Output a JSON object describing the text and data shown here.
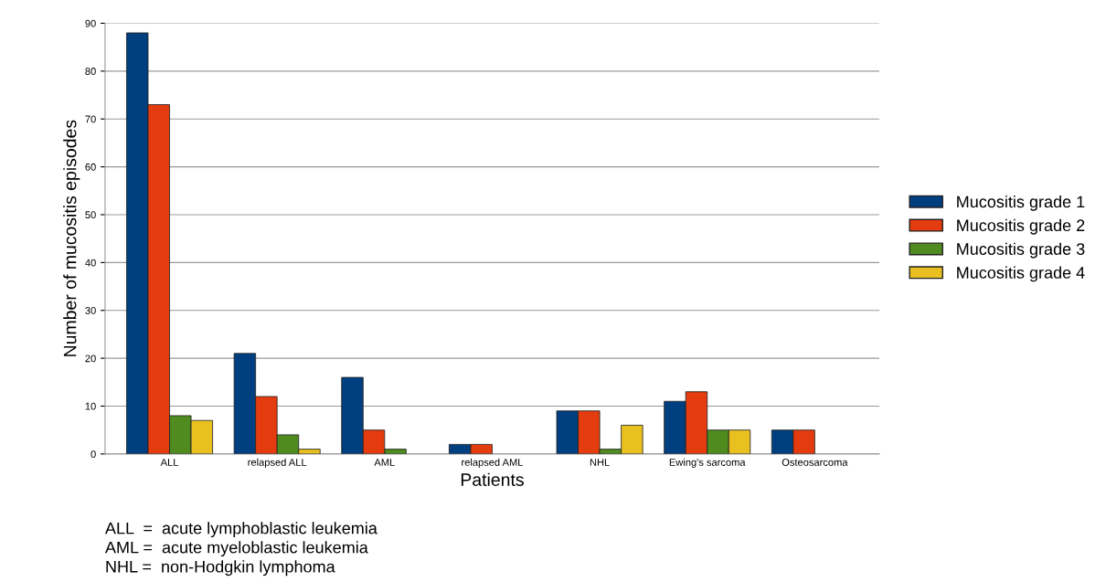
{
  "chart_data": {
    "type": "bar",
    "xlabel": "Patients",
    "ylabel": "Number of mucositis episodes",
    "categories": [
      "ALL",
      "relapsed ALL",
      "AML",
      "relapsed AML",
      "NHL",
      "Ewing's sarcoma",
      "Osteosarcoma"
    ],
    "series": [
      {
        "name": "Mucositis grade 1",
        "color": "#003f7f",
        "values": [
          88,
          21,
          16,
          2,
          9,
          11,
          5
        ]
      },
      {
        "name": "Mucositis grade 2",
        "color": "#e43c0e",
        "values": [
          73,
          12,
          5,
          2,
          9,
          13,
          5
        ]
      },
      {
        "name": "Mucositis grade 3",
        "color": "#4f8b1f",
        "values": [
          8,
          4,
          1,
          null,
          1,
          5,
          null
        ]
      },
      {
        "name": "Mucositis grade 4",
        "color": "#e8c020",
        "values": [
          7,
          1,
          null,
          null,
          6,
          5,
          null
        ]
      }
    ],
    "ylim": [
      0,
      90
    ],
    "yticks": [
      0,
      10,
      20,
      30,
      40,
      50,
      60,
      70,
      80,
      90
    ],
    "grid": "y",
    "legend": "right",
    "annotations": [
      "ALL  =  acute lymphoblastic leukemia",
      "AML =  acute myeloblastic leukemia",
      "NHL =  non-Hodgkin lymphoma"
    ]
  }
}
